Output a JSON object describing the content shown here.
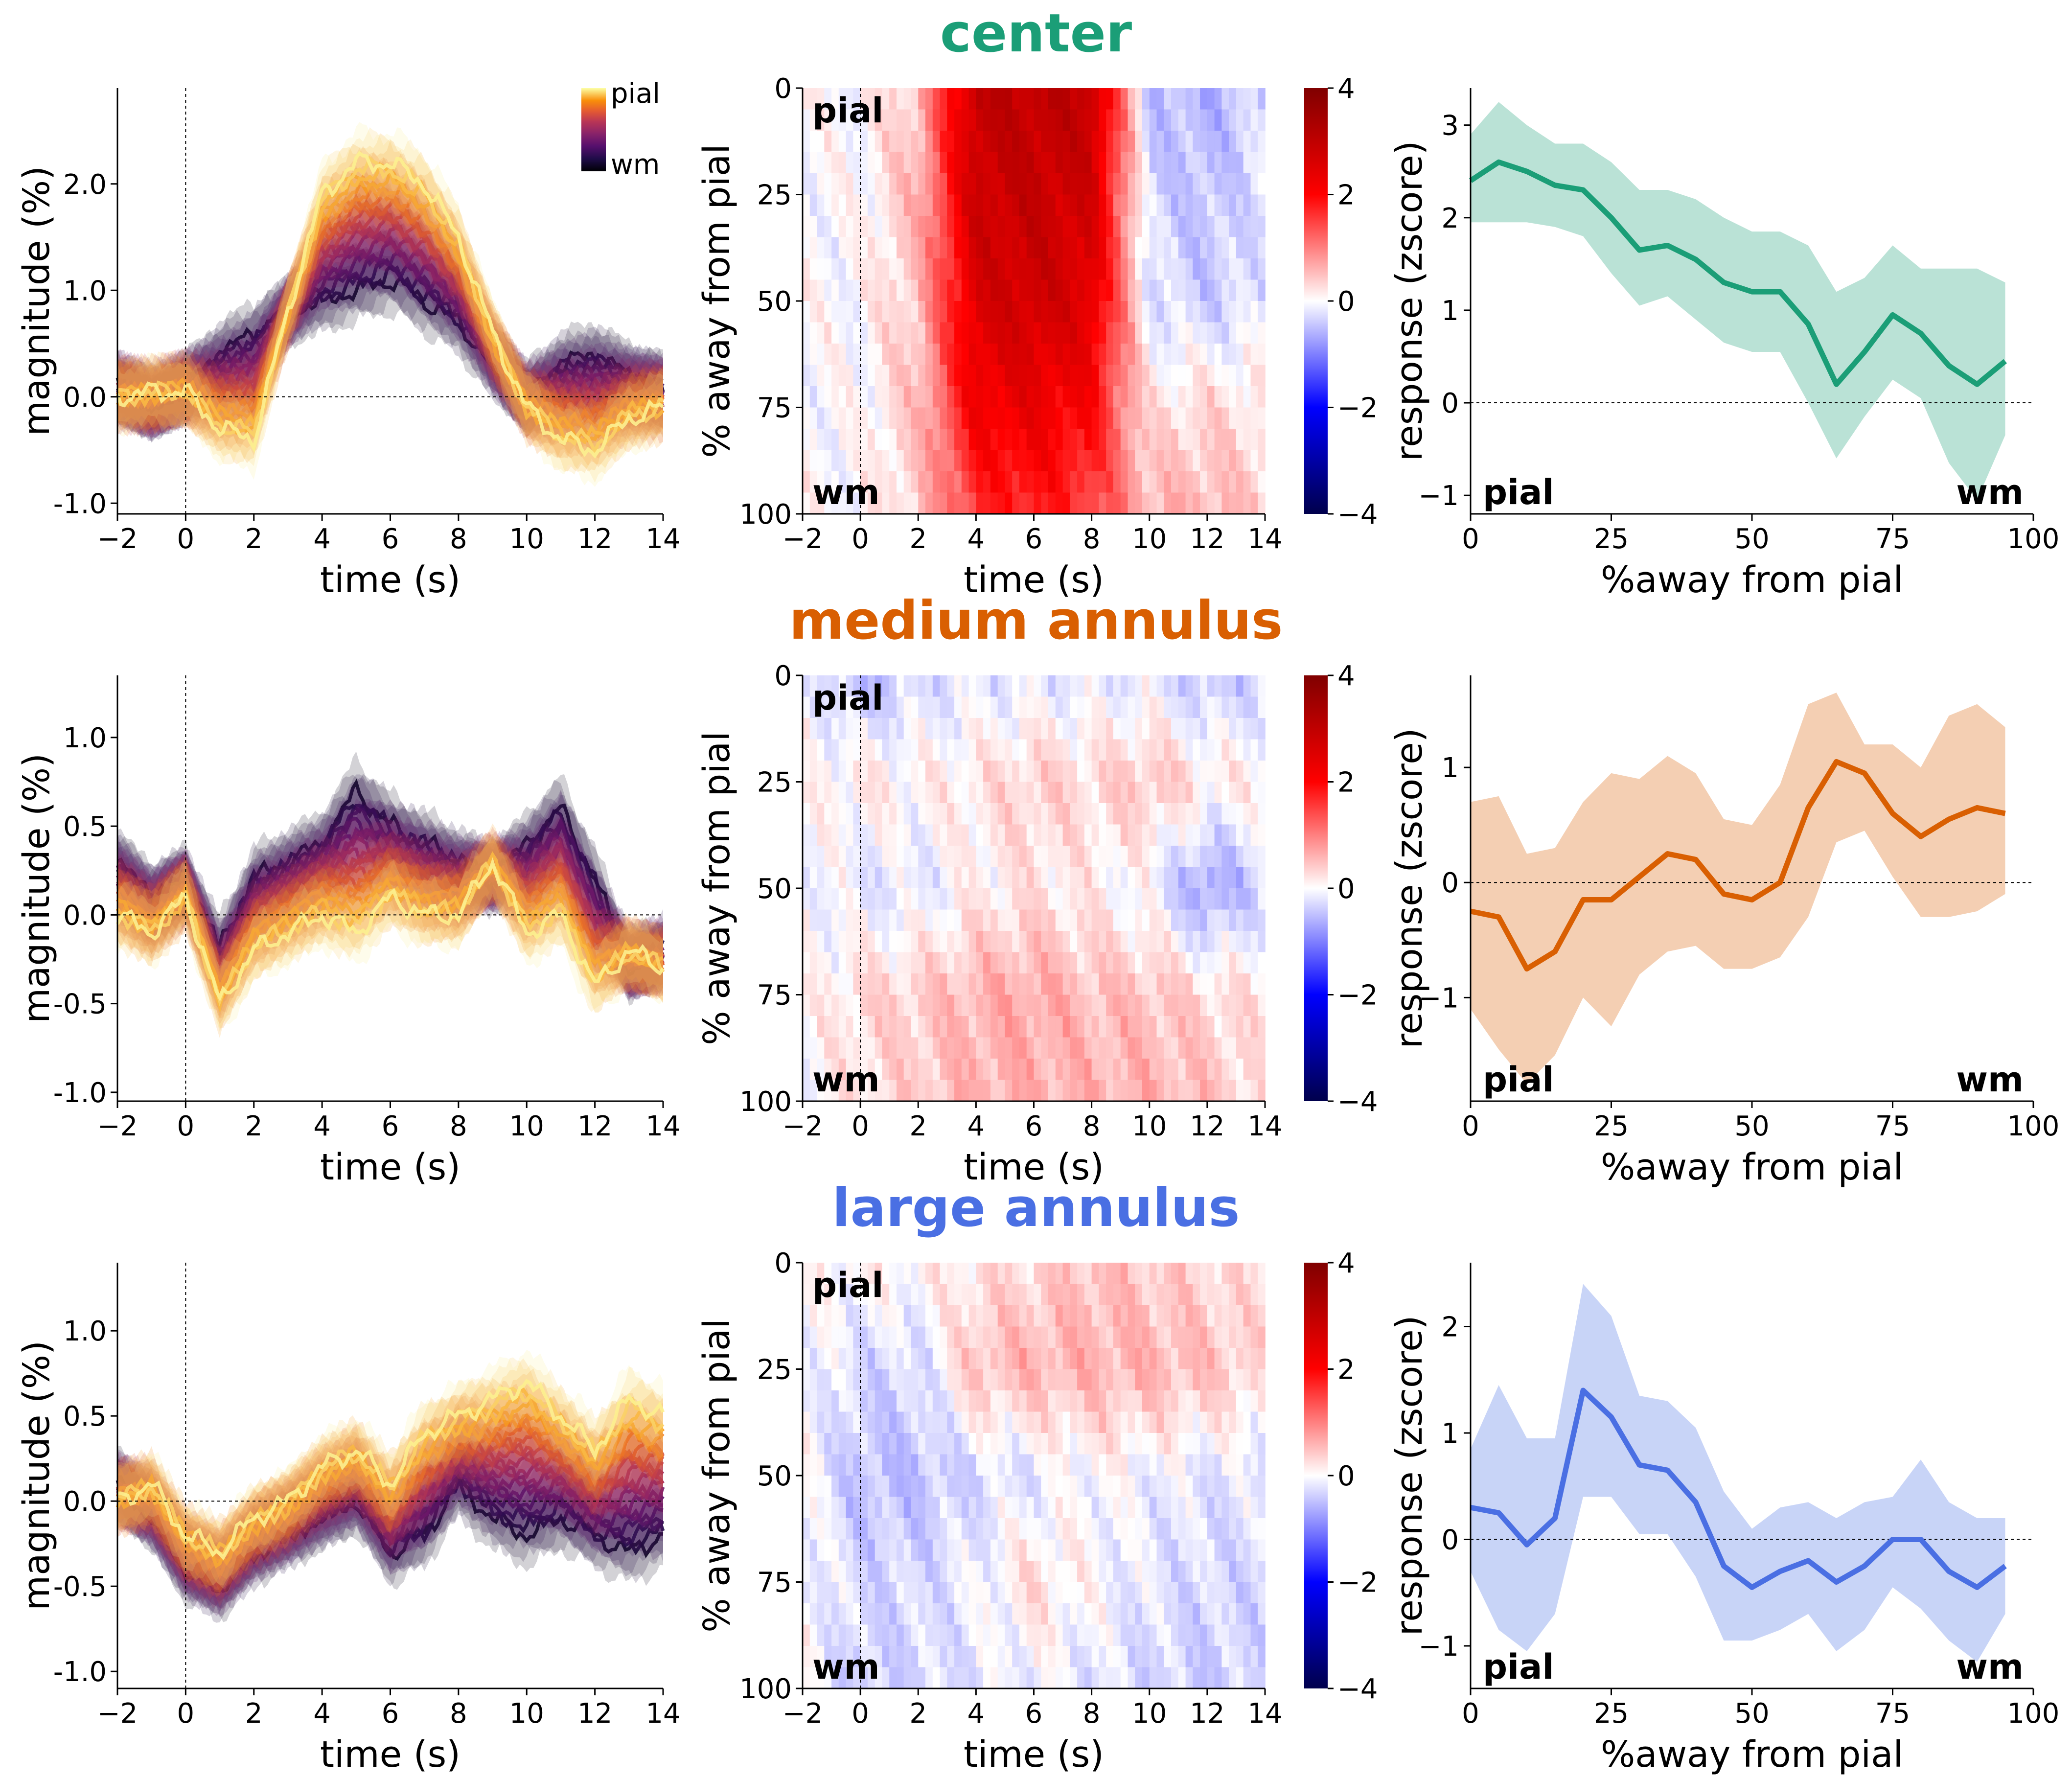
{
  "colors": {
    "center": "#1b9e77",
    "medium_annulus": "#d95f02",
    "large_annulus": "#4a6fe3",
    "colormap_depth": "inferno (wm dark -> pial bright yellow)",
    "colormap_heatmap": "seismic (blue -> white -> red)"
  },
  "rows": [
    {
      "title": "center",
      "color": "#1b9e77",
      "timecourse": {
        "xlabel": "time (s)",
        "ylabel": "magnitude (%)",
        "xticks": [
          "-2",
          "0",
          "2",
          "4",
          "6",
          "8",
          "10",
          "12",
          "14"
        ],
        "yticks": [
          "-1.0",
          "0.0",
          "1.0",
          "2.0"
        ],
        "colorbar_top": "pial",
        "colorbar_bottom": "wm"
      },
      "heatmap": {
        "ylabel": "% away from pial",
        "xlabel": "time (s)",
        "yticks": [
          "0",
          "25",
          "50",
          "75",
          "100"
        ],
        "xticks": [
          "-2",
          "0",
          "2",
          "4",
          "6",
          "8",
          "10",
          "12",
          "14"
        ],
        "cbticks": [
          "4",
          "2",
          "0",
          "-2",
          "-4"
        ],
        "label_top": "pial",
        "label_bottom": "wm"
      },
      "profile": {
        "xlabel": "%away from pial",
        "ylabel": "response (zscore)",
        "xticks": [
          "0",
          "25",
          "50",
          "75",
          "100"
        ],
        "yticks": [
          "-1",
          "0",
          "1",
          "2",
          "3"
        ],
        "label_left": "pial",
        "label_right": "wm"
      }
    },
    {
      "title": "medium annulus",
      "color": "#d95f02",
      "timecourse": {
        "xlabel": "time (s)",
        "ylabel": "magnitude (%)",
        "xticks": [
          "-2",
          "0",
          "2",
          "4",
          "6",
          "8",
          "10",
          "12",
          "14"
        ],
        "yticks": [
          "-1.0",
          "-0.5",
          "0.0",
          "0.5",
          "1.0"
        ]
      },
      "heatmap": {
        "ylabel": "% away from pial",
        "xlabel": "time (s)",
        "yticks": [
          "0",
          "25",
          "50",
          "75",
          "100"
        ],
        "xticks": [
          "-2",
          "0",
          "2",
          "4",
          "6",
          "8",
          "10",
          "12",
          "14"
        ],
        "cbticks": [
          "4",
          "2",
          "0",
          "-2",
          "-4"
        ],
        "label_top": "pial",
        "label_bottom": "wm"
      },
      "profile": {
        "xlabel": "%away from pial",
        "ylabel": "response (zscore)",
        "xticks": [
          "0",
          "25",
          "50",
          "75",
          "100"
        ],
        "yticks": [
          "-1",
          "0",
          "1"
        ],
        "label_left": "pial",
        "label_right": "wm"
      }
    },
    {
      "title": "large annulus",
      "color": "#4a6fe3",
      "timecourse": {
        "xlabel": "time (s)",
        "ylabel": "magnitude (%)",
        "xticks": [
          "-2",
          "0",
          "2",
          "4",
          "6",
          "8",
          "10",
          "12",
          "14"
        ],
        "yticks": [
          "-1.0",
          "-0.5",
          "0.0",
          "0.5",
          "1.0"
        ]
      },
      "heatmap": {
        "ylabel": "% away from pial",
        "xlabel": "time (s)",
        "yticks": [
          "0",
          "25",
          "50",
          "75",
          "100"
        ],
        "xticks": [
          "-2",
          "0",
          "2",
          "4",
          "6",
          "8",
          "10",
          "12",
          "14"
        ],
        "cbticks": [
          "4",
          "2",
          "0",
          "-2",
          "-4"
        ],
        "label_top": "pial",
        "label_bottom": "wm"
      },
      "profile": {
        "xlabel": "%away from pial",
        "ylabel": "response (zscore)",
        "xticks": [
          "0",
          "25",
          "50",
          "75",
          "100"
        ],
        "yticks": [
          "-1",
          "0",
          "1",
          "2"
        ],
        "label_left": "pial",
        "label_right": "wm"
      }
    }
  ],
  "chart_data": [
    {
      "type": "line",
      "panel": "center / timecourse",
      "xlabel": "time (s)",
      "ylabel": "magnitude (%)",
      "xlim": [
        -2,
        14
      ],
      "ylim": [
        -1.1,
        2.9
      ],
      "x": [
        -2,
        -1,
        0,
        1,
        2,
        3,
        4,
        5,
        6,
        7,
        8,
        9,
        10,
        11,
        12,
        13,
        14
      ],
      "series": [
        {
          "name": "pial",
          "values": [
            0.0,
            0.05,
            0.05,
            -0.3,
            -0.4,
            0.8,
            1.9,
            2.2,
            2.2,
            2.0,
            1.5,
            0.6,
            -0.1,
            -0.4,
            -0.5,
            -0.2,
            -0.1
          ]
        },
        {
          "name": "wm",
          "values": [
            0.1,
            -0.1,
            0.1,
            0.4,
            0.6,
            0.8,
            0.9,
            1.0,
            1.1,
            0.9,
            0.7,
            0.3,
            0.0,
            0.3,
            0.4,
            0.2,
            0.1
          ]
        }
      ]
    },
    {
      "type": "heatmap",
      "panel": "center / depth x time",
      "xlabel": "time (s)",
      "ylabel": "% away from pial",
      "xlim": [
        -2,
        14
      ],
      "ylim": [
        0,
        100
      ],
      "clim": [
        -4,
        4
      ],
      "x": [
        -2,
        0,
        2,
        4,
        6,
        8,
        10,
        12,
        14
      ],
      "y": [
        0,
        25,
        50,
        75,
        100
      ],
      "values": [
        [
          0,
          0,
          0.5,
          3,
          3,
          3,
          -0.5,
          -0.6,
          -0.3
        ],
        [
          0,
          0,
          0.6,
          2.8,
          2.9,
          2.7,
          -0.3,
          -0.5,
          -0.2
        ],
        [
          0,
          0,
          0.5,
          2.6,
          2.8,
          2.5,
          -0.2,
          -0.4,
          -0.2
        ],
        [
          0,
          0,
          0.5,
          2.2,
          2.3,
          2.0,
          0.2,
          0.3,
          0.2
        ],
        [
          0,
          0,
          0.4,
          1.6,
          1.8,
          1.5,
          0.6,
          0.6,
          0.4
        ]
      ]
    },
    {
      "type": "line",
      "panel": "center / depth profile",
      "xlabel": "%away from pial",
      "ylabel": "response (zscore)",
      "xlim": [
        0,
        100
      ],
      "ylim": [
        -1.2,
        3.4
      ],
      "x": [
        0,
        5,
        10,
        15,
        20,
        25,
        30,
        35,
        40,
        45,
        50,
        55,
        60,
        65,
        70,
        75,
        80,
        85,
        90,
        95
      ],
      "series": [
        {
          "name": "mean",
          "values": [
            2.4,
            2.6,
            2.5,
            2.35,
            2.3,
            2.0,
            1.65,
            1.7,
            1.55,
            1.3,
            1.2,
            1.2,
            0.85,
            0.2,
            0.55,
            0.95,
            0.75,
            0.4,
            0.2,
            0.45
          ]
        },
        {
          "name": "upper",
          "values": [
            2.9,
            3.25,
            3.0,
            2.8,
            2.8,
            2.6,
            2.3,
            2.3,
            2.2,
            2.0,
            1.85,
            1.85,
            1.7,
            1.2,
            1.35,
            1.7,
            1.45,
            1.45,
            1.45,
            1.3
          ]
        },
        {
          "name": "lower",
          "values": [
            1.95,
            1.95,
            1.95,
            1.9,
            1.8,
            1.4,
            1.05,
            1.15,
            0.9,
            0.65,
            0.55,
            0.55,
            0.0,
            -0.6,
            -0.15,
            0.25,
            0.05,
            -0.65,
            -1.05,
            -0.35
          ]
        }
      ]
    },
    {
      "type": "line",
      "panel": "medium annulus / timecourse",
      "xlabel": "time (s)",
      "ylabel": "magnitude (%)",
      "xlim": [
        -2,
        14
      ],
      "ylim": [
        -1.05,
        1.35
      ],
      "x": [
        -2,
        -1,
        0,
        1,
        2,
        3,
        4,
        5,
        6,
        7,
        8,
        9,
        10,
        11,
        12,
        13,
        14
      ],
      "series": [
        {
          "name": "pial",
          "values": [
            0.0,
            -0.1,
            0.1,
            -0.5,
            -0.2,
            -0.1,
            0.0,
            -0.1,
            0.1,
            0.0,
            0.0,
            0.3,
            -0.1,
            0.0,
            -0.4,
            -0.2,
            -0.3
          ]
        },
        {
          "name": "wm",
          "values": [
            0.3,
            0.1,
            0.2,
            -0.2,
            0.2,
            0.3,
            0.4,
            0.7,
            0.5,
            0.4,
            0.3,
            0.2,
            0.4,
            0.6,
            0.2,
            -0.3,
            -0.2
          ]
        }
      ]
    },
    {
      "type": "heatmap",
      "panel": "medium annulus / depth x time",
      "xlabel": "time (s)",
      "ylabel": "% away from pial",
      "xlim": [
        -2,
        14
      ],
      "ylim": [
        0,
        100
      ],
      "clim": [
        -4,
        4
      ],
      "x": [
        -2,
        0,
        2,
        4,
        6,
        8,
        10,
        12,
        14
      ],
      "y": [
        0,
        25,
        50,
        75,
        100
      ],
      "values": [
        [
          0,
          -0.6,
          -0.3,
          -0.2,
          -0.2,
          -0.2,
          -0.2,
          -0.5,
          -0.3
        ],
        [
          0,
          0.2,
          0.1,
          0.2,
          0.4,
          0.3,
          0.5,
          0.2,
          0.1
        ],
        [
          0,
          -0.2,
          -0.2,
          0.1,
          0.2,
          0.1,
          -0.1,
          -0.8,
          -0.3
        ],
        [
          0,
          0.3,
          0.4,
          0.6,
          0.7,
          0.5,
          0.5,
          0.3,
          0.2
        ],
        [
          0,
          0.2,
          0.4,
          0.6,
          0.6,
          0.6,
          0.6,
          0.5,
          0.2
        ]
      ]
    },
    {
      "type": "line",
      "panel": "medium annulus / depth profile",
      "xlabel": "%away from pial",
      "ylabel": "response (zscore)",
      "xlim": [
        0,
        100
      ],
      "ylim": [
        -1.9,
        1.8
      ],
      "x": [
        0,
        5,
        10,
        15,
        20,
        25,
        30,
        35,
        40,
        45,
        50,
        55,
        60,
        65,
        70,
        75,
        80,
        85,
        90,
        95
      ],
      "series": [
        {
          "name": "mean",
          "values": [
            -0.25,
            -0.3,
            -0.75,
            -0.6,
            -0.15,
            -0.15,
            0.05,
            0.25,
            0.2,
            -0.1,
            -0.15,
            0.0,
            0.65,
            1.05,
            0.95,
            0.6,
            0.4,
            0.55,
            0.65,
            0.6
          ]
        },
        {
          "name": "upper",
          "values": [
            0.7,
            0.75,
            0.25,
            0.3,
            0.7,
            0.95,
            0.9,
            1.1,
            0.95,
            0.55,
            0.5,
            0.85,
            1.55,
            1.65,
            1.2,
            1.2,
            1.0,
            1.45,
            1.55,
            1.35
          ]
        },
        {
          "name": "lower",
          "values": [
            -1.1,
            -1.45,
            -1.75,
            -1.5,
            -1.0,
            -1.25,
            -0.8,
            -0.6,
            -0.55,
            -0.75,
            -0.75,
            -0.65,
            -0.3,
            0.35,
            0.45,
            0.05,
            -0.3,
            -0.3,
            -0.25,
            -0.1
          ]
        }
      ]
    },
    {
      "type": "line",
      "panel": "large annulus / timecourse",
      "xlabel": "time (s)",
      "ylabel": "magnitude (%)",
      "xlim": [
        -2,
        14
      ],
      "ylim": [
        -1.1,
        1.4
      ],
      "x": [
        -2,
        -1,
        0,
        1,
        2,
        3,
        4,
        5,
        6,
        7,
        8,
        9,
        10,
        11,
        12,
        13,
        14
      ],
      "series": [
        {
          "name": "pial",
          "values": [
            0.0,
            0.1,
            -0.2,
            -0.3,
            -0.1,
            0.0,
            0.2,
            0.3,
            0.1,
            0.4,
            0.5,
            0.6,
            0.7,
            0.5,
            0.3,
            0.6,
            0.5
          ]
        },
        {
          "name": "wm",
          "values": [
            0.1,
            -0.1,
            -0.4,
            -0.5,
            -0.3,
            -0.2,
            -0.1,
            0.0,
            -0.3,
            -0.2,
            0.1,
            -0.1,
            -0.2,
            -0.1,
            -0.2,
            -0.3,
            -0.2
          ]
        }
      ]
    },
    {
      "type": "heatmap",
      "panel": "large annulus / depth x time",
      "xlabel": "time (s)",
      "ylabel": "% away from pial",
      "xlim": [
        -2,
        14
      ],
      "ylim": [
        0,
        100
      ],
      "clim": [
        -4,
        4
      ],
      "x": [
        -2,
        0,
        2,
        4,
        6,
        8,
        10,
        12,
        14
      ],
      "y": [
        0,
        25,
        50,
        75,
        100
      ],
      "values": [
        [
          0,
          0.1,
          0.1,
          0.2,
          0.3,
          0.5,
          0.4,
          0.3,
          0.2
        ],
        [
          0,
          -0.3,
          -0.3,
          0.5,
          0.6,
          0.6,
          0.6,
          0.5,
          0.3
        ],
        [
          0,
          -0.5,
          -0.5,
          -0.3,
          -0.2,
          0.0,
          -0.1,
          -0.2,
          -0.2
        ],
        [
          0,
          -0.3,
          -0.3,
          -0.1,
          0.3,
          0.0,
          -0.2,
          -0.3,
          -0.3
        ],
        [
          0,
          -0.4,
          -0.3,
          -0.2,
          -0.1,
          -0.2,
          -0.3,
          -0.4,
          -0.3
        ]
      ]
    },
    {
      "type": "line",
      "panel": "large annulus / depth profile",
      "xlabel": "%away from pial",
      "ylabel": "response (zscore)",
      "xlim": [
        0,
        100
      ],
      "ylim": [
        -1.4,
        2.6
      ],
      "x": [
        0,
        5,
        10,
        15,
        20,
        25,
        30,
        35,
        40,
        45,
        50,
        55,
        60,
        65,
        70,
        75,
        80,
        85,
        90,
        95
      ],
      "series": [
        {
          "name": "mean",
          "values": [
            0.3,
            0.25,
            -0.05,
            0.2,
            1.4,
            1.15,
            0.7,
            0.65,
            0.35,
            -0.25,
            -0.45,
            -0.3,
            -0.2,
            -0.4,
            -0.25,
            0.0,
            0.0,
            -0.3,
            -0.45,
            -0.25
          ]
        },
        {
          "name": "upper",
          "values": [
            0.85,
            1.45,
            0.95,
            0.95,
            2.4,
            2.1,
            1.35,
            1.3,
            1.05,
            0.45,
            0.1,
            0.3,
            0.35,
            0.2,
            0.35,
            0.4,
            0.75,
            0.35,
            0.2,
            0.2
          ]
        },
        {
          "name": "lower",
          "values": [
            -0.3,
            -0.85,
            -1.05,
            -0.7,
            0.4,
            0.4,
            0.05,
            0.05,
            -0.35,
            -0.95,
            -0.95,
            -0.85,
            -0.7,
            -1.05,
            -0.85,
            -0.45,
            -0.65,
            -0.95,
            -1.15,
            -0.7
          ]
        }
      ]
    }
  ]
}
